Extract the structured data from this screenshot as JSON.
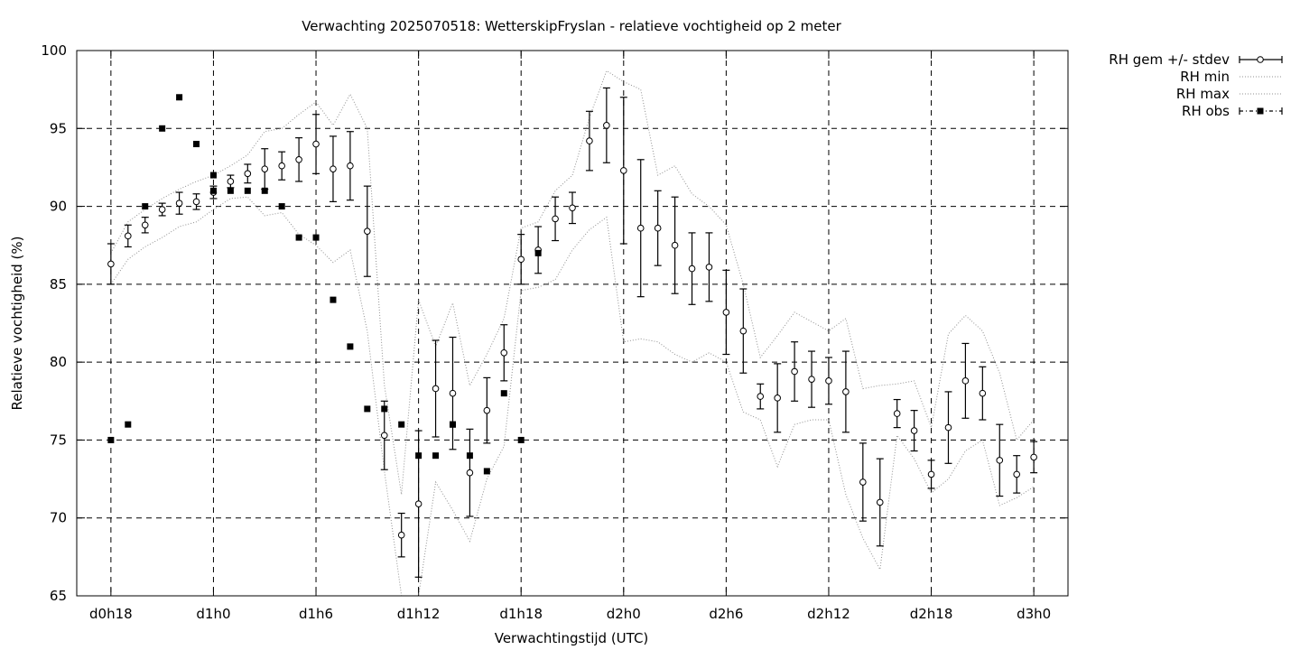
{
  "chart_data": {
    "type": "line",
    "title": "Verwachting 2025070518: WetterskipFryslan - relatieve vochtigheid op 2 meter",
    "xlabel": "Verwachtingstijd (UTC)",
    "ylabel": "Relatieve vochtigheid (%)",
    "x_unit": "hours since d0h0",
    "xlim": [
      16,
      74
    ],
    "ylim": [
      65,
      100
    ],
    "xticks": [
      {
        "label": "d0h18",
        "value": 18
      },
      {
        "label": "d1h0",
        "value": 24
      },
      {
        "label": "d1h6",
        "value": 30
      },
      {
        "label": "d1h12",
        "value": 36
      },
      {
        "label": "d1h18",
        "value": 42
      },
      {
        "label": "d2h0",
        "value": 48
      },
      {
        "label": "d2h6",
        "value": 54
      },
      {
        "label": "d2h12",
        "value": 60
      },
      {
        "label": "d2h18",
        "value": 66
      },
      {
        "label": "d3h0",
        "value": 72
      }
    ],
    "yticks": [
      65,
      70,
      75,
      80,
      85,
      90,
      95,
      100
    ],
    "grid": true,
    "legend_position": "outside top-right",
    "legend": [
      "RH gem +/- stdev",
      "RH min",
      "RH max",
      "RH obs"
    ],
    "x": [
      18,
      19,
      20,
      21,
      22,
      23,
      24,
      25,
      26,
      27,
      28,
      29,
      30,
      31,
      32,
      33,
      34,
      35,
      36,
      37,
      38,
      39,
      40,
      41,
      42,
      43,
      44,
      45,
      46,
      47,
      48,
      49,
      50,
      51,
      52,
      53,
      54,
      55,
      56,
      57,
      58,
      59,
      60,
      61,
      62,
      63,
      64,
      65,
      66,
      67,
      68,
      69,
      70,
      71,
      72
    ],
    "series": [
      {
        "name": "RH gem +/- stdev",
        "style": "errorbars-open-circle",
        "values": [
          86.3,
          88.1,
          88.8,
          89.8,
          90.2,
          90.3,
          90.9,
          91.6,
          92.1,
          92.4,
          92.6,
          93.0,
          94.0,
          92.4,
          92.6,
          88.4,
          75.3,
          68.9,
          70.9,
          78.3,
          78.0,
          72.9,
          76.9,
          80.6,
          86.6,
          87.2,
          89.2,
          89.9,
          94.2,
          95.2,
          92.3,
          88.6,
          88.6,
          87.5,
          86.0,
          86.1,
          83.2,
          82.0,
          77.8,
          77.7,
          79.4,
          78.9,
          78.8,
          78.1,
          72.3,
          71.0,
          76.7,
          75.6,
          72.8,
          75.8,
          78.8,
          78.0,
          73.7,
          72.8,
          73.9
        ],
        "stdev": [
          1.3,
          0.7,
          0.5,
          0.4,
          0.7,
          0.5,
          0.4,
          0.4,
          0.6,
          1.3,
          0.9,
          1.4,
          1.9,
          2.1,
          2.2,
          2.9,
          2.2,
          1.4,
          4.7,
          3.1,
          3.6,
          2.8,
          2.1,
          1.8,
          1.6,
          1.5,
          1.4,
          1.0,
          1.9,
          2.4,
          4.7,
          4.4,
          2.4,
          3.1,
          2.3,
          2.2,
          2.7,
          2.7,
          0.8,
          2.2,
          1.9,
          1.8,
          1.5,
          2.6,
          2.5,
          2.8,
          0.9,
          1.3,
          0.9,
          2.3,
          2.4,
          1.7,
          2.3,
          1.2,
          1.0
        ]
      },
      {
        "name": "RH min",
        "style": "dotted",
        "values": [
          85.0,
          86.6,
          87.4,
          88.0,
          88.7,
          89.0,
          89.8,
          90.5,
          90.6,
          89.4,
          89.6,
          88.2,
          87.5,
          86.4,
          87.2,
          82.0,
          73.0,
          65.0,
          65.0,
          72.3,
          70.5,
          68.5,
          72.5,
          74.6,
          84.6,
          84.8,
          85.3,
          87.2,
          88.5,
          89.3,
          81.3,
          81.5,
          81.3,
          80.5,
          80.0,
          80.6,
          80.0,
          76.8,
          76.3,
          73.3,
          76.0,
          76.3,
          76.3,
          71.5,
          68.7,
          66.7,
          75.3,
          73.8,
          71.6,
          72.5,
          74.3,
          75.0,
          70.8,
          71.3,
          72.0
        ]
      },
      {
        "name": "RH max",
        "style": "dotted",
        "values": [
          87.0,
          89.0,
          89.8,
          90.5,
          91.1,
          91.6,
          92.0,
          92.6,
          93.3,
          94.8,
          95.0,
          95.9,
          96.7,
          95.2,
          97.2,
          95.0,
          78.5,
          71.5,
          84.0,
          81.0,
          83.8,
          78.5,
          80.5,
          82.8,
          88.6,
          89.0,
          91.0,
          92.0,
          95.7,
          98.7,
          98.0,
          97.5,
          92.0,
          92.6,
          90.8,
          90.0,
          88.8,
          85.0,
          80.3,
          81.7,
          83.2,
          82.6,
          82.0,
          82.8,
          78.3,
          78.5,
          78.6,
          78.8,
          75.8,
          81.8,
          83.0,
          82.0,
          79.3,
          75.0,
          76.3
        ]
      },
      {
        "name": "RH obs",
        "style": "filled-squares",
        "x": [
          18,
          19,
          20,
          21,
          22,
          23,
          24,
          24,
          25,
          26,
          27,
          28,
          29,
          30,
          31,
          32,
          33,
          34,
          35,
          36,
          37,
          38,
          38,
          39,
          40,
          41,
          42,
          43,
          44
        ],
        "values": [
          75,
          76,
          90,
          95,
          97,
          94,
          92,
          91,
          91,
          91,
          91,
          90,
          88,
          88,
          84,
          81,
          77,
          77,
          76,
          74,
          74,
          76,
          76,
          74,
          73,
          78,
          75,
          87,
          null
        ]
      }
    ]
  }
}
